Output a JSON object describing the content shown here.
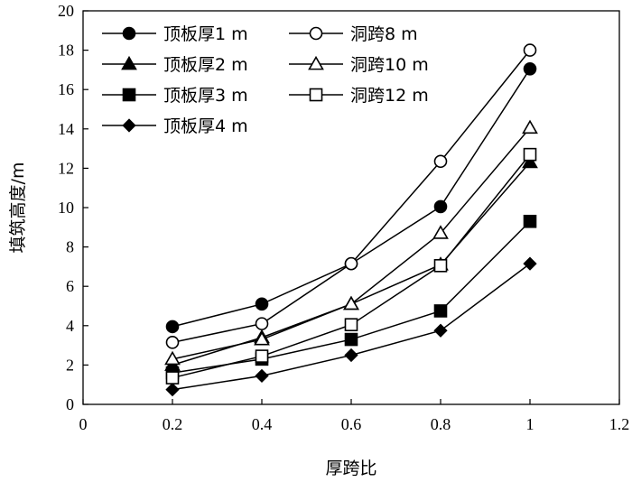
{
  "chart_data": {
    "type": "line",
    "title": "",
    "xlabel": "厚跨比",
    "ylabel": "填筑高度/m",
    "xlim": [
      0,
      1.2
    ],
    "ylim": [
      0,
      20
    ],
    "xticks": [
      0,
      0.2,
      0.4,
      0.6,
      0.8,
      1,
      1.2
    ],
    "yticks": [
      0,
      2,
      4,
      6,
      8,
      10,
      12,
      14,
      16,
      18,
      20
    ],
    "xtick_labels": [
      "0",
      "0.2",
      "0.4",
      "0.6",
      "0.8",
      "1",
      "1.2"
    ],
    "ytick_labels": [
      "0",
      "2",
      "4",
      "6",
      "8",
      "10",
      "12",
      "14",
      "16",
      "18",
      "20"
    ],
    "grid": false,
    "legend_position": "top-left",
    "x": [
      0.2,
      0.4,
      0.6,
      0.8,
      1.0
    ],
    "series": [
      {
        "name": "顶板厚1 m",
        "marker": "circle-filled",
        "values": [
          3.95,
          5.1,
          7.15,
          10.05,
          17.05
        ]
      },
      {
        "name": "顶板厚2 m",
        "marker": "triangle-filled",
        "values": [
          2.0,
          3.4,
          5.1,
          7.1,
          12.3
        ]
      },
      {
        "name": "顶板厚3 m",
        "marker": "square-filled",
        "values": [
          1.6,
          2.3,
          3.3,
          4.75,
          9.3
        ]
      },
      {
        "name": "顶板厚4 m",
        "marker": "diamond-filled",
        "values": [
          0.75,
          1.45,
          2.5,
          3.75,
          7.15
        ]
      },
      {
        "name": "洞跨8 m",
        "marker": "circle-open",
        "values": [
          3.15,
          4.1,
          7.15,
          12.35,
          18.0
        ]
      },
      {
        "name": "洞跨10 m",
        "marker": "triangle-open",
        "values": [
          2.3,
          3.3,
          5.1,
          8.7,
          14.05
        ]
      },
      {
        "name": "洞跨12 m",
        "marker": "square-open",
        "values": [
          1.35,
          2.45,
          4.05,
          7.05,
          12.7
        ]
      }
    ]
  }
}
